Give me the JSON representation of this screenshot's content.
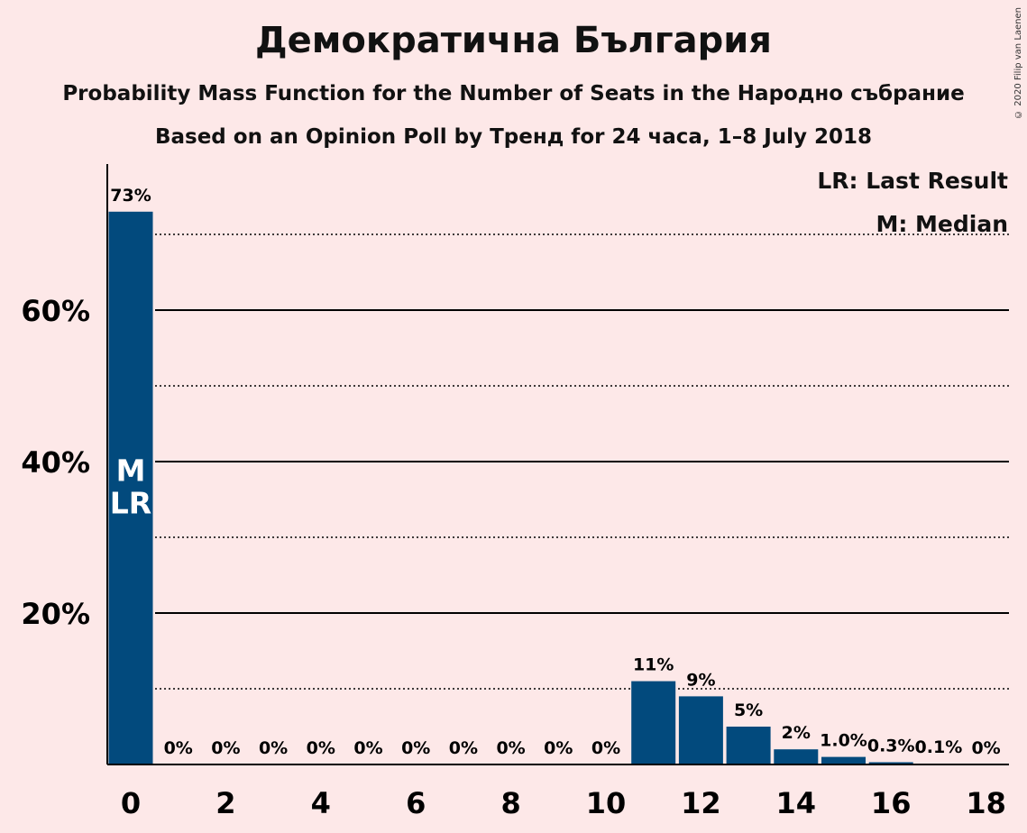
{
  "title": "Демократична България",
  "subtitle1": "Probability Mass Function for the Number of Seats in the Народно събрание",
  "subtitle2": "Based on an Opinion Poll by Тренд for 24 часа, 1–8 July 2018",
  "legend": {
    "lr": "LR: Last Result",
    "m": "M: Median"
  },
  "copyright": "© 2020 Filip van Laenen",
  "colors": {
    "bar": "#024a7d",
    "background": "#fde8e8"
  },
  "chart_data": {
    "type": "bar",
    "x": [
      0,
      1,
      2,
      3,
      4,
      5,
      6,
      7,
      8,
      9,
      10,
      11,
      12,
      13,
      14,
      15,
      16,
      17,
      18
    ],
    "values": [
      73,
      0,
      0,
      0,
      0,
      0,
      0,
      0,
      0,
      0,
      0,
      11,
      9,
      5,
      2,
      1.0,
      0.3,
      0.1,
      0
    ],
    "labels": [
      "73%",
      "0%",
      "0%",
      "0%",
      "0%",
      "0%",
      "0%",
      "0%",
      "0%",
      "0%",
      "0%",
      "11%",
      "9%",
      "5%",
      "2%",
      "1.0%",
      "0.3%",
      "0.1%",
      "0%"
    ],
    "x_ticks": [
      "0",
      "2",
      "4",
      "6",
      "8",
      "10",
      "12",
      "14",
      "16",
      "18"
    ],
    "y_ticks": [
      "20%",
      "40%",
      "60%"
    ],
    "ylim": [
      0,
      79
    ],
    "solid_gridlines": [
      20,
      40,
      60
    ],
    "dotted_gridlines": [
      10,
      30,
      50,
      70
    ],
    "bar_markers": {
      "x": 0,
      "lines": [
        "M",
        "LR"
      ]
    }
  }
}
